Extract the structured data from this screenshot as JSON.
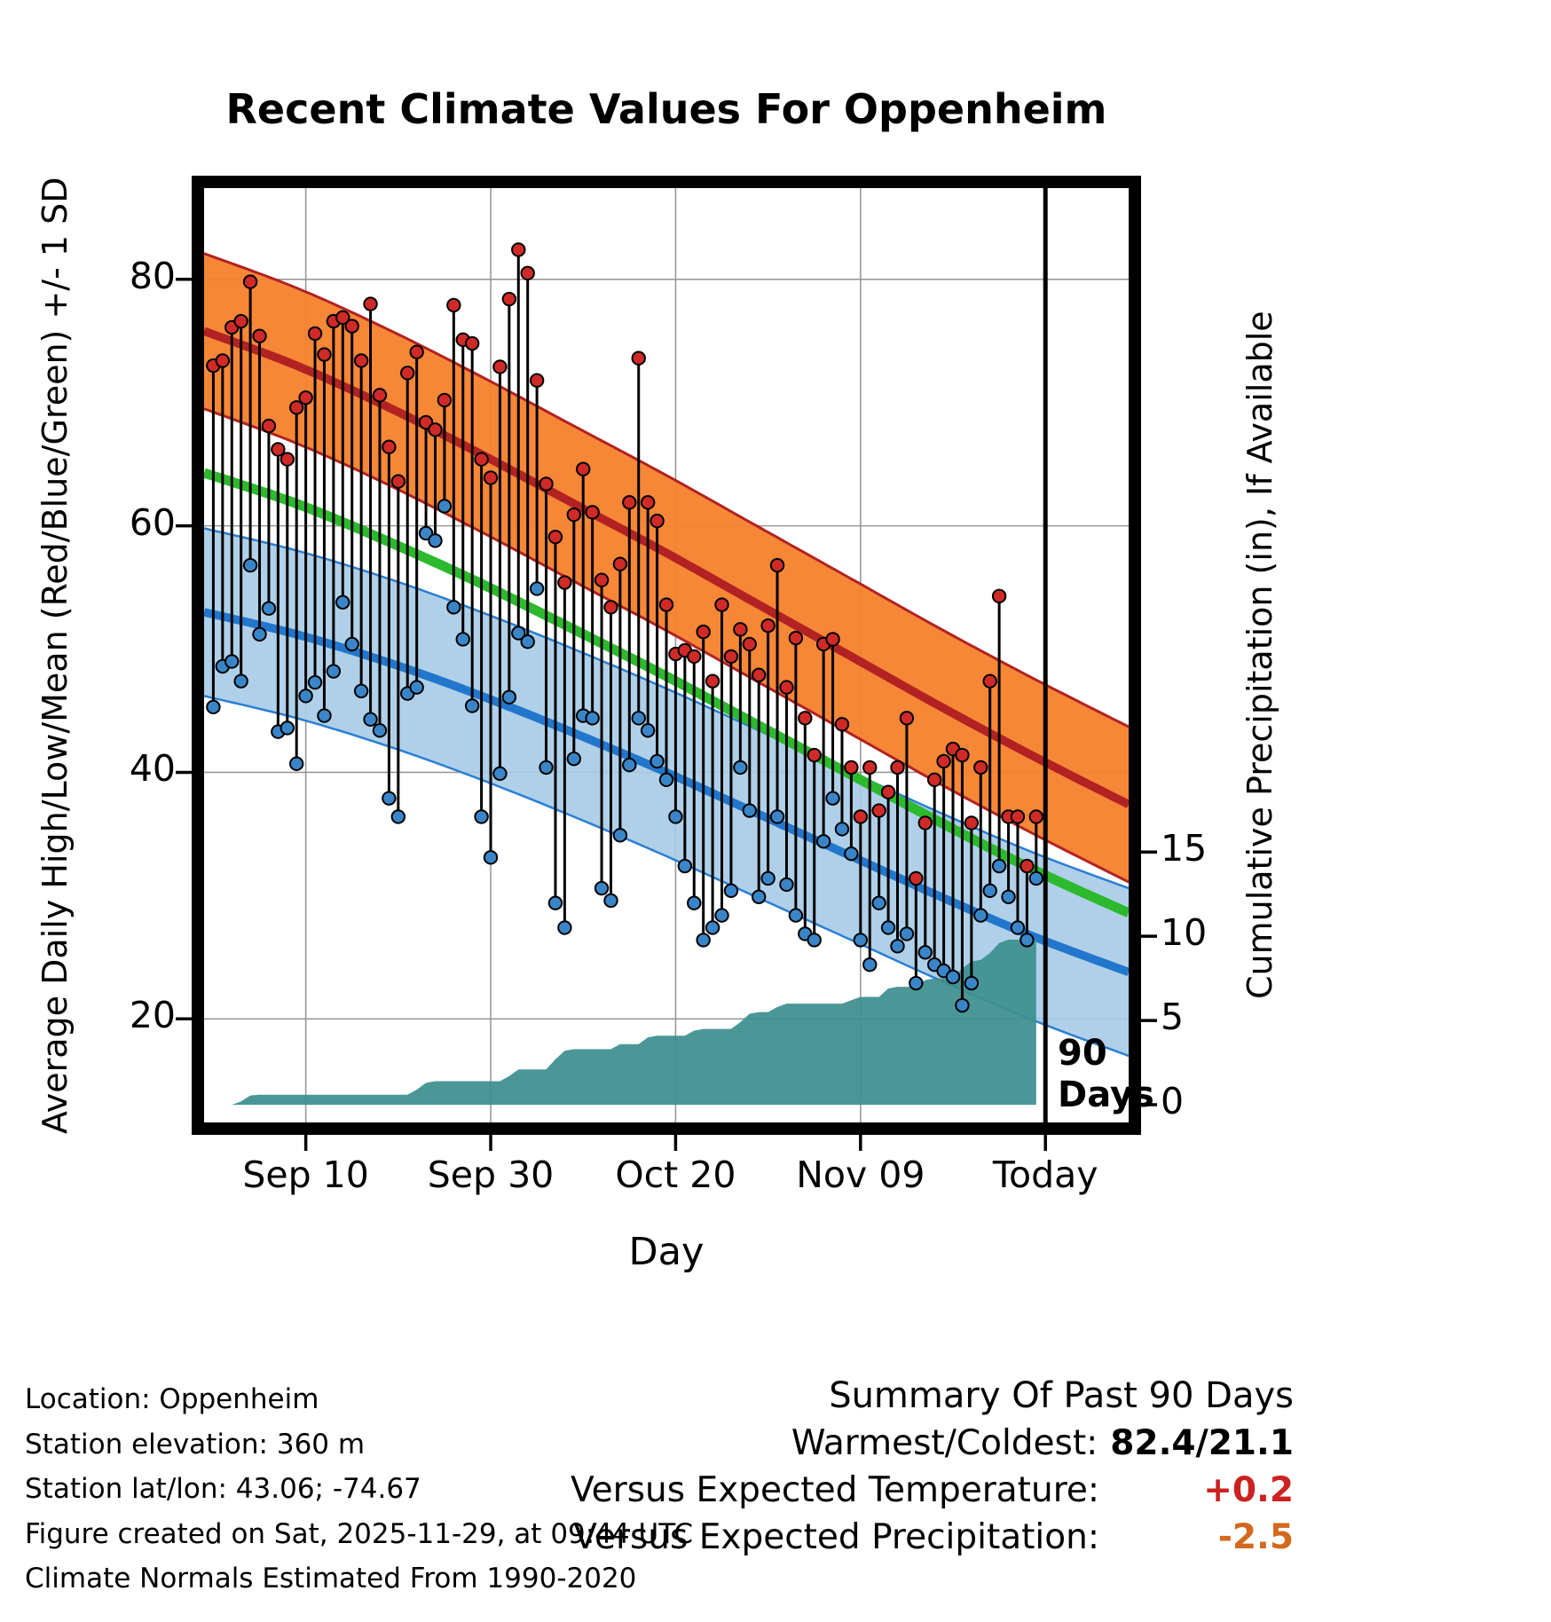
{
  "footer": {
    "lines": [
      "Location: Oppenheim",
      "Station elevation: 360 m",
      "Station lat/lon: 43.06; -74.67",
      "Figure created on Sat, 2025-11-29, at 09:44 UTC",
      "Climate Normals Estimated From 1990-2020"
    ]
  },
  "summary": {
    "heading": "Summary Of Past 90 Days",
    "rows": [
      {
        "label": "Warmest/Coldest:",
        "value": "82.4/21.1",
        "value_color": "#000000"
      },
      {
        "label": "Versus Expected Temperature:",
        "value": "+0.2",
        "value_color": "#cc2222"
      },
      {
        "label": "Versus Expected Precipitation:",
        "value": "-2.5",
        "value_color": "#d2691e"
      }
    ]
  },
  "chart_data": {
    "type": "composite",
    "title": "Recent Climate Values For Oppenheim",
    "xlabel": "Day",
    "ylabel_left": "Average Daily High/Low/Mean (Red/Blue/Green) +/- 1 SD",
    "ylabel_right": "Cumulative Precipitation (in), If Available",
    "x_tick_labels": [
      "Sep 10",
      "Sep 30",
      "Oct 20",
      "Nov 09",
      "Today"
    ],
    "x_tick_days": [
      11,
      31,
      51,
      71,
      91
    ],
    "x_range_days": [
      0,
      100
    ],
    "y_ticks_left": [
      20,
      40,
      60,
      80
    ],
    "ylim_left": [
      11.6,
      87.4
    ],
    "y_ticks_right": [
      0,
      5,
      10,
      15
    ],
    "ylim_right": [
      -1.05,
      54.4
    ],
    "start_day": 1,
    "today_day": 91,
    "today_label_line1": "90",
    "today_label_line2": "Days",
    "daily_high": [
      73.0,
      73.4,
      76.1,
      76.6,
      79.8,
      75.4,
      68.1,
      66.2,
      65.4,
      69.6,
      70.4,
      75.6,
      73.9,
      76.6,
      76.9,
      76.2,
      73.4,
      78.0,
      70.6,
      66.4,
      63.6,
      72.4,
      74.1,
      68.4,
      67.8,
      70.2,
      77.9,
      75.1,
      74.8,
      65.4,
      63.9,
      72.9,
      78.4,
      82.4,
      80.5,
      71.8,
      63.4,
      59.1,
      55.4,
      60.9,
      64.6,
      61.1,
      55.6,
      53.4,
      56.9,
      61.9,
      73.6,
      61.9,
      60.4,
      53.6,
      49.6,
      49.9,
      49.4,
      51.4,
      47.4,
      53.6,
      49.4,
      51.6,
      50.4,
      47.9,
      51.9,
      56.8,
      46.9,
      50.9,
      44.4,
      41.4,
      50.4,
      50.8,
      43.9,
      40.4,
      36.4,
      40.4,
      36.9,
      38.4,
      40.4,
      44.4,
      31.4,
      35.9,
      39.4,
      40.9,
      41.9,
      41.4,
      35.9,
      40.4,
      47.4,
      54.3,
      36.4,
      36.4,
      32.4,
      36.4
    ],
    "daily_low": [
      45.3,
      48.6,
      49.0,
      47.4,
      56.8,
      51.2,
      53.3,
      43.3,
      43.6,
      40.7,
      46.2,
      47.3,
      44.6,
      48.2,
      53.8,
      50.4,
      46.6,
      44.3,
      43.4,
      37.9,
      36.4,
      46.4,
      46.9,
      59.4,
      58.8,
      61.6,
      53.4,
      50.8,
      45.4,
      36.4,
      33.1,
      39.9,
      46.1,
      51.3,
      50.6,
      54.9,
      40.4,
      29.4,
      27.4,
      41.1,
      44.6,
      44.4,
      30.6,
      29.6,
      34.9,
      40.6,
      44.4,
      43.4,
      40.9,
      39.4,
      36.4,
      32.4,
      29.4,
      26.4,
      27.4,
      28.4,
      30.4,
      40.4,
      36.9,
      29.9,
      31.4,
      36.4,
      30.9,
      28.4,
      26.9,
      26.4,
      34.4,
      37.9,
      35.4,
      33.4,
      26.4,
      24.4,
      29.4,
      27.4,
      25.9,
      26.9,
      22.9,
      25.4,
      24.4,
      23.9,
      23.4,
      21.1,
      22.9,
      28.4,
      30.4,
      32.4,
      29.9,
      27.4,
      26.4,
      31.4
    ],
    "precip_cumulative": [
      0,
      0,
      0,
      0.2,
      0.55,
      0.6,
      0.6,
      0.6,
      0.6,
      0.6,
      0.6,
      0.6,
      0.6,
      0.6,
      0.6,
      0.6,
      0.6,
      0.6,
      0.6,
      0.6,
      0.6,
      0.6,
      0.9,
      1.3,
      1.4,
      1.4,
      1.4,
      1.4,
      1.4,
      1.4,
      1.4,
      1.4,
      1.7,
      2.1,
      2.1,
      2.1,
      2.1,
      2.7,
      3.2,
      3.3,
      3.3,
      3.3,
      3.3,
      3.3,
      3.6,
      3.6,
      3.6,
      4.0,
      4.1,
      4.1,
      4.1,
      4.1,
      4.4,
      4.5,
      4.5,
      4.5,
      4.5,
      4.9,
      5.4,
      5.5,
      5.5,
      5.8,
      6.0,
      6.0,
      6.0,
      6.0,
      6.0,
      6.0,
      6.0,
      6.2,
      6.4,
      6.4,
      6.4,
      6.9,
      7.0,
      7.0,
      7.0,
      7.4,
      7.5,
      7.5,
      7.5,
      8.1,
      8.5,
      8.6,
      9.0,
      9.6,
      9.8,
      9.8,
      9.8,
      9.8
    ],
    "normals": {
      "days": [
        0,
        10,
        20,
        30,
        40,
        50,
        60,
        70,
        80,
        90,
        100
      ],
      "high_mean": [
        75.8,
        73.0,
        69.6,
        65.8,
        61.8,
        57.8,
        53.6,
        49.4,
        45.2,
        41.2,
        37.4
      ],
      "mean": [
        64.3,
        61.8,
        58.7,
        55.3,
        51.6,
        47.8,
        43.8,
        39.8,
        35.8,
        32.0,
        28.6
      ],
      "low_mean": [
        53.0,
        51.2,
        48.9,
        46.2,
        43.2,
        40.0,
        36.6,
        33.2,
        29.8,
        26.6,
        23.8
      ],
      "high_sd": 6.3,
      "low_sd": 6.8
    },
    "colors": {
      "high_band": "#f5812c",
      "high_mean_line": "#b22222",
      "low_band": "#a6cbe6",
      "low_band_edge": "#2a7fd4",
      "low_mean_line": "#2277cc",
      "mean_line": "#2db92d",
      "daily_high_dot": "#cf2a27",
      "daily_low_dot": "#3a85c8",
      "stem": "#000000",
      "precip_fill": "#3d8f8f",
      "today_line": "#000000",
      "grid": "#999999"
    }
  }
}
